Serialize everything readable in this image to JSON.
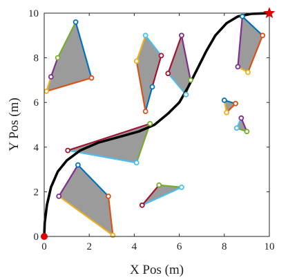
{
  "chart_data": {
    "type": "scatter",
    "title": "",
    "xlabel": "X Pos (m)",
    "ylabel": "Y Pos (m)",
    "xlim": [
      0,
      10
    ],
    "ylim": [
      0,
      10
    ],
    "xticks": [
      0,
      2,
      4,
      6,
      8,
      10
    ],
    "yticks": [
      0,
      2,
      4,
      6,
      8,
      10
    ],
    "xtick_labels": [
      "0",
      "2",
      "4",
      "6",
      "8",
      "10"
    ],
    "ytick_labels": [
      "0",
      "2",
      "4",
      "6",
      "8",
      "10"
    ],
    "grid": false,
    "colors": {
      "obstacle_fill": "#9b9b9b",
      "path": "#000000",
      "start": "#e00000",
      "goal": "#e00000",
      "edge_palette": [
        "#0072bd",
        "#d95319",
        "#edb120",
        "#7e2f8e",
        "#77ac30",
        "#4dbeee",
        "#a2142f"
      ]
    },
    "path": [
      [
        0,
        0
      ],
      [
        0.02,
        0.6
      ],
      [
        0.12,
        1.4
      ],
      [
        0.3,
        2.2
      ],
      [
        0.6,
        2.9
      ],
      [
        1.0,
        3.4
      ],
      [
        1.6,
        3.85
      ],
      [
        2.4,
        4.2
      ],
      [
        3.3,
        4.45
      ],
      [
        4.2,
        4.7
      ],
      [
        4.9,
        5.0
      ],
      [
        5.5,
        5.5
      ],
      [
        6.0,
        6.0
      ],
      [
        6.4,
        6.7
      ],
      [
        6.8,
        7.5
      ],
      [
        7.2,
        8.3
      ],
      [
        7.6,
        9.0
      ],
      [
        8.1,
        9.55
      ],
      [
        8.6,
        9.85
      ],
      [
        9.2,
        9.97
      ],
      [
        10,
        10
      ]
    ],
    "start": [
      0,
      0
    ],
    "goal": [
      10,
      10
    ],
    "obstacles": [
      {
        "vertices": [
          [
            1.4,
            9.6
          ],
          [
            2.1,
            7.1
          ],
          [
            0.1,
            6.5
          ],
          [
            0.3,
            7.15
          ],
          [
            0.6,
            8.0
          ]
        ]
      },
      {
        "vertices": [
          [
            4.5,
            9.0
          ],
          [
            5.2,
            8.1
          ],
          [
            4.8,
            6.7
          ],
          [
            4.5,
            5.6
          ],
          [
            4.1,
            7.85
          ]
        ]
      },
      {
        "vertices": [
          [
            6.1,
            9.0
          ],
          [
            6.5,
            7.0
          ],
          [
            6.3,
            6.35
          ],
          [
            5.5,
            7.3
          ]
        ]
      },
      {
        "vertices": [
          [
            8.8,
            9.85
          ],
          [
            9.7,
            9.0
          ],
          [
            9.05,
            7.35
          ],
          [
            8.6,
            7.6
          ]
        ]
      },
      {
        "vertices": [
          [
            4.7,
            5.05
          ],
          [
            4.1,
            3.3
          ],
          [
            1.05,
            3.85
          ]
        ]
      },
      {
        "vertices": [
          [
            1.5,
            3.2
          ],
          [
            2.85,
            1.8
          ],
          [
            3.05,
            0.05
          ],
          [
            0.65,
            1.8
          ]
        ]
      },
      {
        "vertices": [
          [
            5.1,
            2.3
          ],
          [
            6.1,
            2.2
          ],
          [
            4.35,
            1.4
          ]
        ]
      },
      {
        "vertices": [
          [
            8.0,
            6.1
          ],
          [
            8.5,
            5.95
          ],
          [
            8.1,
            5.55
          ]
        ]
      },
      {
        "vertices": [
          [
            8.75,
            5.3
          ],
          [
            9.0,
            4.7
          ],
          [
            8.55,
            4.85
          ]
        ]
      }
    ]
  }
}
